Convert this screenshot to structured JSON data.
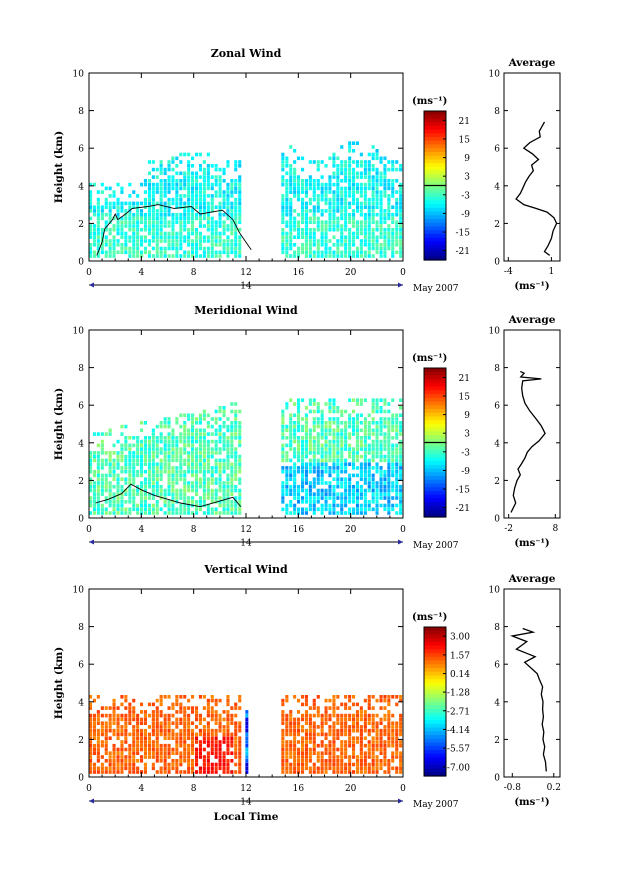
{
  "panels": [
    {
      "title": "Zonal Wind",
      "ylabel": "Height (km)",
      "y_ticks": [
        "0",
        "2",
        "4",
        "6",
        "8",
        "10"
      ],
      "x_ticks": [
        "0",
        "4",
        "8",
        "12",
        "16",
        "20",
        "0"
      ],
      "day_label": "14",
      "month_label": "May 2007",
      "colorbar": {
        "unit": "(ms⁻¹)",
        "ticks": [
          "21",
          "15",
          "9",
          "3",
          "-3",
          "-9",
          "-15",
          "-21"
        ],
        "range": [
          -24,
          24
        ]
      },
      "avg": {
        "title": "Average",
        "xlabel": "(ms⁻¹)",
        "x_ticks": [
          "-4",
          "1"
        ],
        "xlim": [
          -4.5,
          2
        ],
        "ylim": [
          0,
          10
        ],
        "profile": [
          [
            0.8,
            0.3
          ],
          [
            0.2,
            0.5
          ],
          [
            0.6,
            0.8
          ],
          [
            1.0,
            1.2
          ],
          [
            1.2,
            1.6
          ],
          [
            1.6,
            2.0
          ],
          [
            1.3,
            2.3
          ],
          [
            0.5,
            2.6
          ],
          [
            -0.8,
            2.8
          ],
          [
            -2.2,
            3.0
          ],
          [
            -3.1,
            3.3
          ],
          [
            -2.6,
            3.6
          ],
          [
            -2.3,
            3.9
          ],
          [
            -2.0,
            4.2
          ],
          [
            -1.6,
            4.5
          ],
          [
            -1.1,
            4.8
          ],
          [
            -1.3,
            5.1
          ],
          [
            -0.5,
            5.4
          ],
          [
            -1.2,
            5.7
          ],
          [
            -2.2,
            6.0
          ],
          [
            -1.5,
            6.3
          ],
          [
            -0.3,
            6.6
          ],
          [
            -0.4,
            6.9
          ],
          [
            0.2,
            7.4
          ]
        ]
      },
      "contour": [
        [
          0.6,
          0.3
        ],
        [
          1.0,
          1.0
        ],
        [
          1.2,
          1.7
        ],
        [
          1.8,
          2.2
        ],
        [
          2.0,
          2.5
        ],
        [
          2.2,
          2.2
        ],
        [
          2.8,
          2.5
        ],
        [
          3.3,
          2.8
        ],
        [
          4.5,
          2.9
        ],
        [
          5.3,
          3.0
        ],
        [
          6.5,
          2.8
        ],
        [
          7.8,
          2.9
        ],
        [
          8.5,
          2.5
        ],
        [
          10.2,
          2.7
        ],
        [
          11.0,
          2.2
        ],
        [
          11.5,
          1.5
        ],
        [
          12.0,
          1.0
        ],
        [
          12.4,
          0.6
        ]
      ]
    },
    {
      "title": "Meridional Wind",
      "ylabel": "Height (km)",
      "y_ticks": [
        "0",
        "2",
        "4",
        "6",
        "8",
        "10"
      ],
      "x_ticks": [
        "0",
        "4",
        "8",
        "12",
        "16",
        "20",
        "0"
      ],
      "day_label": "14",
      "month_label": "May 2007",
      "colorbar": {
        "unit": "(ms⁻¹)",
        "ticks": [
          "21",
          "15",
          "9",
          "3",
          "-3",
          "-9",
          "-15",
          "-21"
        ],
        "range": [
          -24,
          24
        ]
      },
      "avg": {
        "title": "Average",
        "xlabel": "(ms⁻¹)",
        "x_ticks": [
          "-2",
          "8"
        ],
        "xlim": [
          -3,
          9
        ],
        "ylim": [
          0,
          10
        ],
        "profile": [
          [
            -1.5,
            0.3
          ],
          [
            -0.5,
            0.8
          ],
          [
            -1.0,
            1.2
          ],
          [
            -0.7,
            1.6
          ],
          [
            -0.2,
            2.0
          ],
          [
            0.5,
            2.3
          ],
          [
            0.0,
            2.6
          ],
          [
            0.8,
            2.9
          ],
          [
            1.5,
            3.2
          ],
          [
            2.0,
            3.5
          ],
          [
            3.0,
            3.8
          ],
          [
            4.5,
            4.1
          ],
          [
            5.8,
            4.5
          ],
          [
            5.0,
            4.9
          ],
          [
            3.8,
            5.3
          ],
          [
            2.5,
            5.7
          ],
          [
            1.5,
            6.1
          ],
          [
            1.0,
            6.5
          ],
          [
            0.8,
            6.9
          ],
          [
            1.0,
            7.3
          ],
          [
            5.0,
            7.4
          ],
          [
            0.6,
            7.5
          ],
          [
            1.3,
            7.7
          ],
          [
            0.5,
            7.8
          ]
        ]
      },
      "contour": [
        [
          0.5,
          0.8
        ],
        [
          1.5,
          1.0
        ],
        [
          2.5,
          1.3
        ],
        [
          3.2,
          1.8
        ],
        [
          4.0,
          1.5
        ],
        [
          5.0,
          1.2
        ],
        [
          6.0,
          1.0
        ],
        [
          7.0,
          0.8
        ],
        [
          8.5,
          0.6
        ],
        [
          10.0,
          0.9
        ],
        [
          11.0,
          1.1
        ],
        [
          11.6,
          0.6
        ]
      ]
    },
    {
      "title": "Vertical Wind",
      "ylabel": "Height (km)",
      "xlabel": "Local Time",
      "y_ticks": [
        "0",
        "2",
        "4",
        "6",
        "8",
        "10"
      ],
      "x_ticks": [
        "0",
        "4",
        "8",
        "12",
        "16",
        "20",
        "0"
      ],
      "day_label": "14",
      "month_label": "May 2007",
      "colorbar": {
        "unit": "(ms⁻¹)",
        "ticks": [
          "3.00",
          "1.57",
          "0.14",
          "-1.28",
          "-2.71",
          "-4.14",
          "-5.57",
          "-7.00"
        ],
        "range": [
          -7.7,
          3.7
        ]
      },
      "avg": {
        "title": "Average",
        "xlabel": "(ms⁻¹)",
        "x_ticks": [
          "-0.8",
          "0.2"
        ],
        "xlim": [
          -1.0,
          0.35
        ],
        "ylim": [
          0,
          10
        ],
        "profile": [
          [
            0.02,
            0.3
          ],
          [
            0.0,
            0.8
          ],
          [
            -0.05,
            1.2
          ],
          [
            -0.02,
            1.6
          ],
          [
            -0.06,
            2.0
          ],
          [
            -0.04,
            2.4
          ],
          [
            -0.08,
            2.8
          ],
          [
            -0.05,
            3.2
          ],
          [
            -0.07,
            3.6
          ],
          [
            -0.06,
            4.0
          ],
          [
            -0.1,
            4.4
          ],
          [
            -0.07,
            4.8
          ],
          [
            -0.15,
            5.2
          ],
          [
            -0.2,
            5.5
          ],
          [
            -0.35,
            5.8
          ],
          [
            -0.5,
            6.1
          ],
          [
            -0.25,
            6.4
          ],
          [
            -0.7,
            6.8
          ],
          [
            -0.45,
            7.2
          ],
          [
            -0.8,
            7.5
          ],
          [
            -0.3,
            7.7
          ],
          [
            -0.55,
            7.9
          ]
        ]
      },
      "contour": []
    }
  ]
}
